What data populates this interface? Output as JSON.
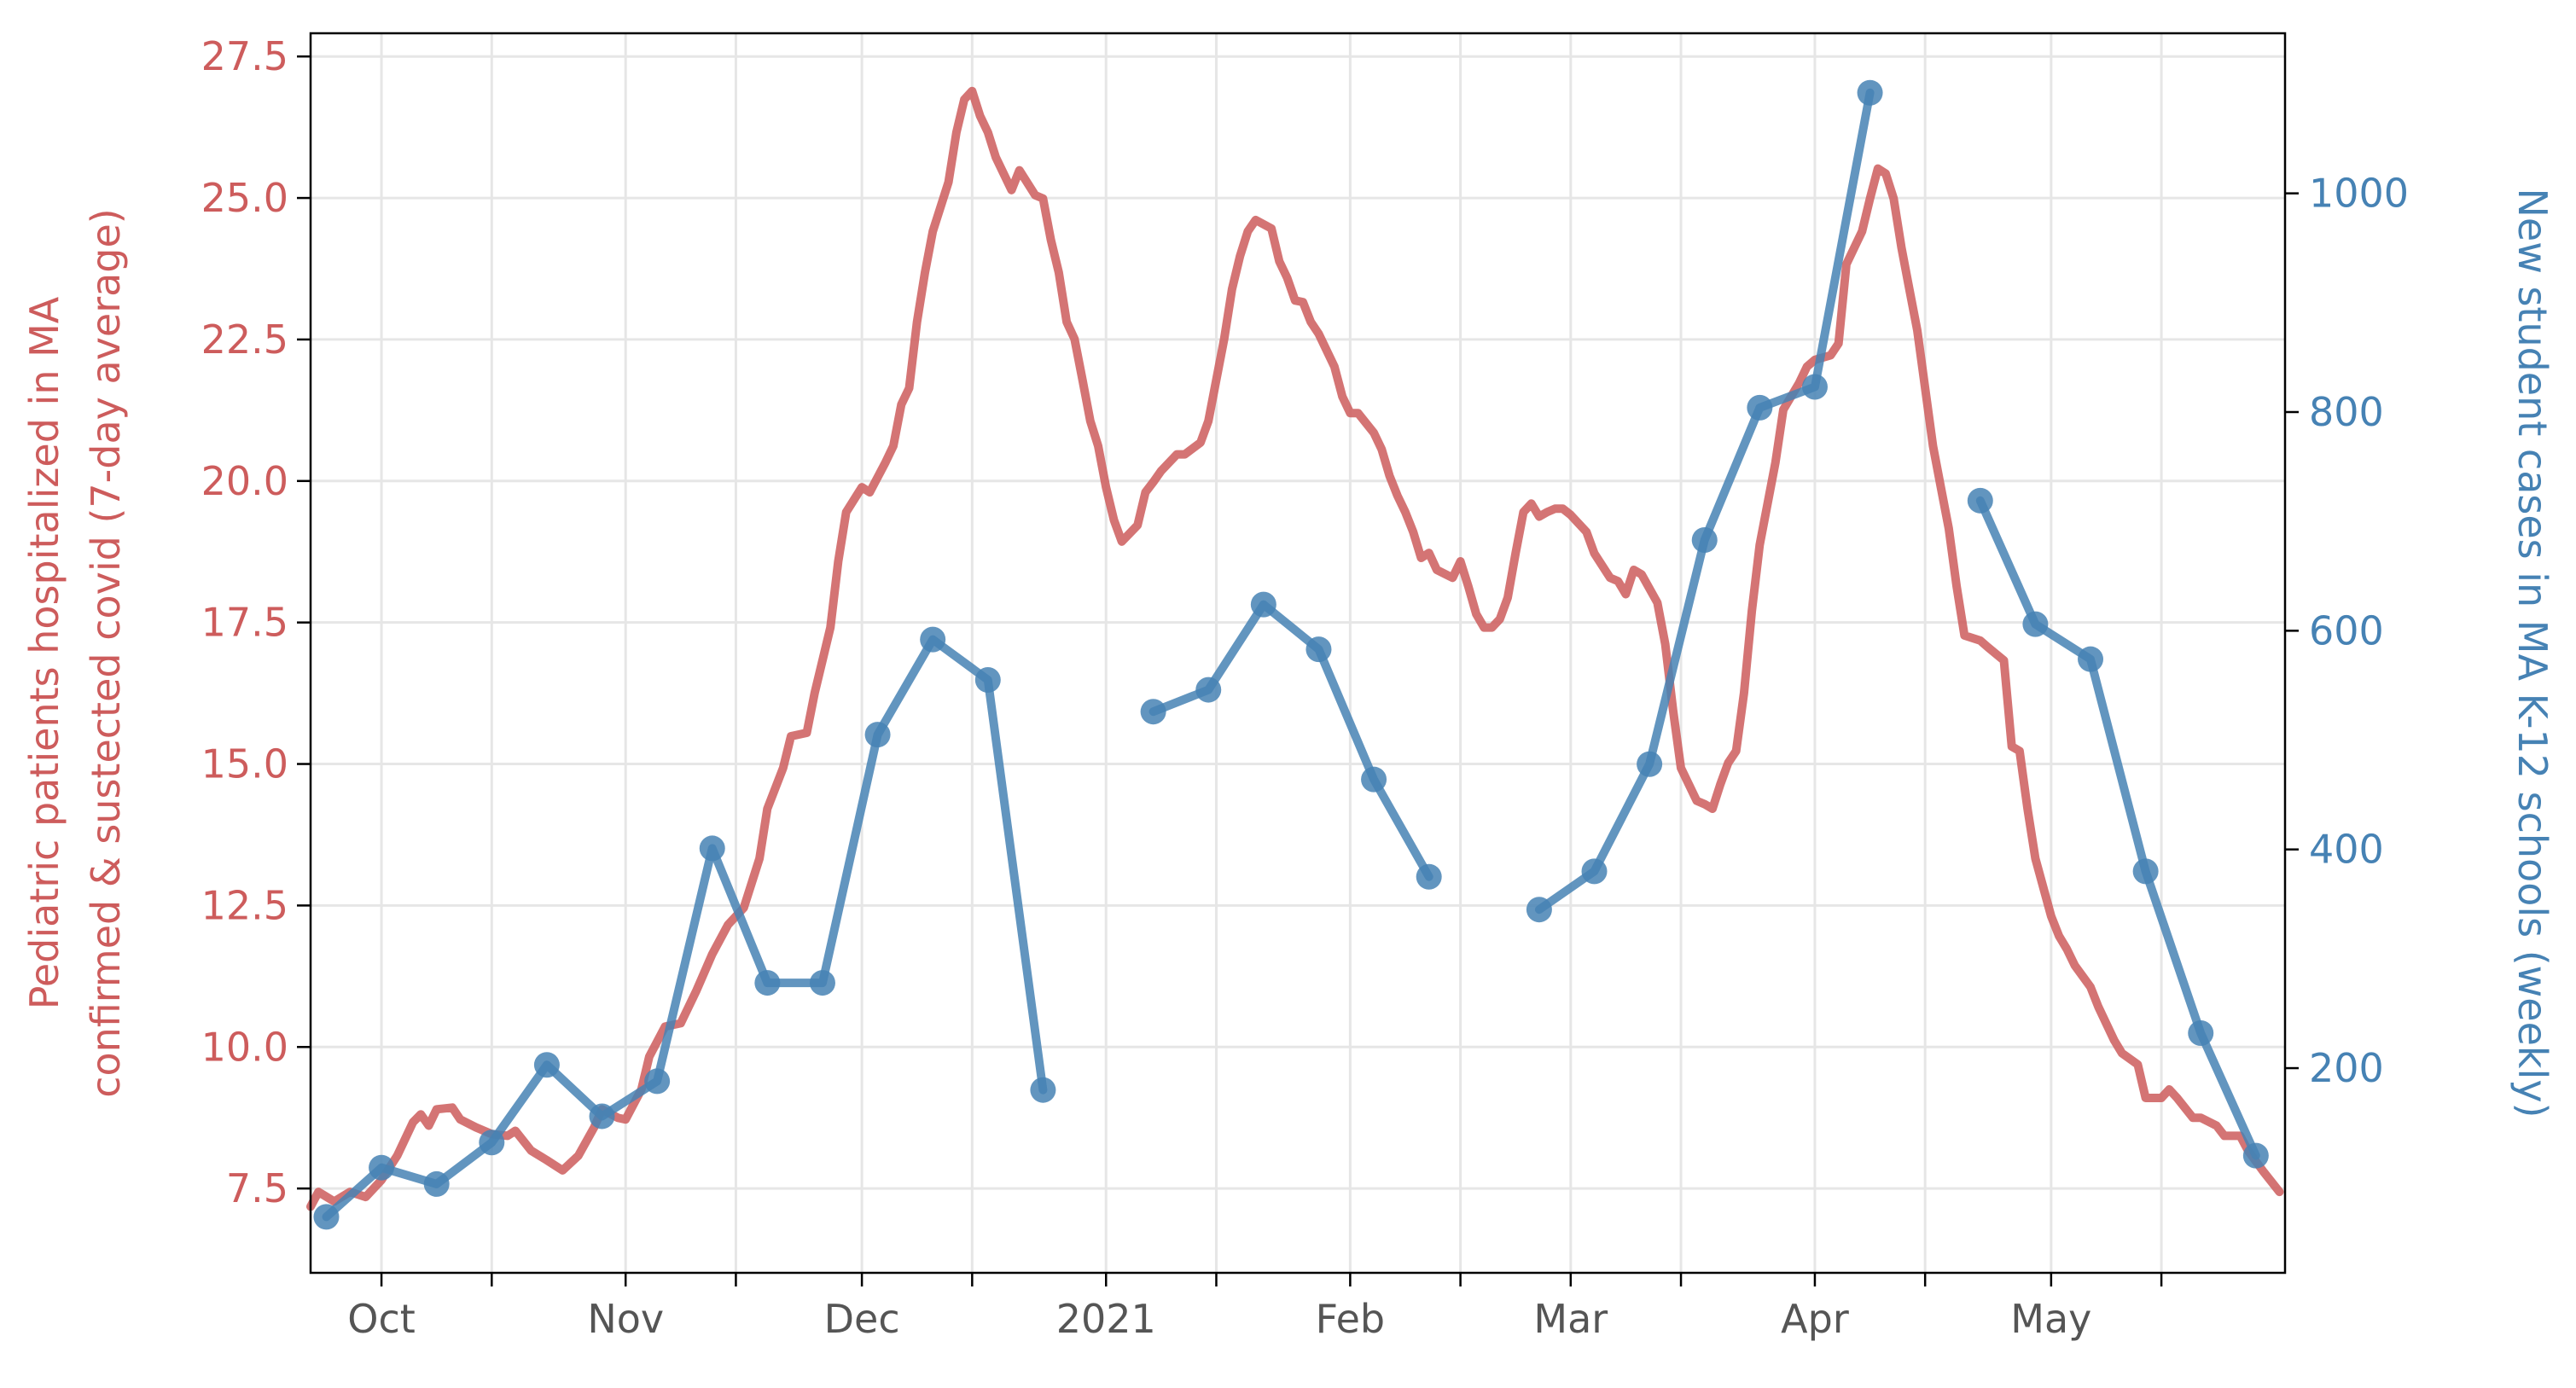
{
  "chart_data": {
    "type": "line",
    "y_label_lines": [
      "Pediatric patients hospitalized in MA",
      "confirmed & sustected covid (7-day average)"
    ],
    "y2_label": "New student cases in MA K-12 schools (weekly)",
    "xlim": [
      -9,
      241.7
    ],
    "xticks": [
      {
        "value": 0,
        "label": "Oct"
      },
      {
        "value": 31,
        "label": "Nov"
      },
      {
        "value": 61,
        "label": "Dec"
      },
      {
        "value": 92,
        "label": "2021"
      },
      {
        "value": 123,
        "label": "Feb"
      },
      {
        "value": 151,
        "label": "Mar"
      },
      {
        "value": 182,
        "label": "Apr"
      },
      {
        "value": 212,
        "label": "May"
      }
    ],
    "xminorticks": [
      14,
      45,
      75,
      106,
      137,
      165,
      196,
      226
    ],
    "ylim": [
      6.01,
      27.91
    ],
    "yticks": [
      7.5,
      {
        "value": 10,
        "label": "10.0"
      },
      12.5,
      {
        "value": 15,
        "label": "15.0"
      },
      17.5,
      {
        "value": 20,
        "label": "20.0"
      },
      22.5,
      {
        "value": 25,
        "label": "25.0"
      },
      27.5
    ],
    "y2lim": [
      12.8,
      1146.4
    ],
    "y2ticks": [
      200,
      400,
      600,
      800,
      1000
    ],
    "grid": true,
    "series": [
      {
        "color": "#cd5c5c",
        "axis": "y",
        "markers": false,
        "x": [
          -9,
          -8,
          -6,
          -4,
          -2,
          0,
          2,
          4,
          5,
          6,
          7,
          9,
          10,
          12,
          14,
          16,
          17,
          19,
          21,
          23,
          25,
          27,
          28,
          30,
          31,
          33,
          34,
          36,
          38,
          40,
          42,
          44,
          46,
          48,
          49,
          51,
          52,
          54,
          55,
          57,
          58,
          59,
          61,
          62,
          64,
          65,
          66,
          67,
          68,
          69,
          70,
          72,
          73,
          74,
          75,
          76,
          77,
          78,
          80,
          81,
          83,
          84,
          85,
          86,
          87,
          88,
          89,
          90,
          91,
          92,
          93,
          94,
          96,
          97,
          98,
          99,
          101,
          102,
          104,
          105,
          106,
          107,
          108,
          109,
          110,
          111,
          113,
          114,
          115,
          116,
          117,
          118,
          119,
          121,
          122,
          123,
          124,
          126,
          127,
          128,
          129,
          130,
          131,
          132,
          133,
          134,
          136,
          137,
          138,
          139,
          140,
          141,
          142,
          143,
          144,
          145,
          146,
          147,
          148,
          149,
          150,
          151,
          153,
          154,
          156,
          157,
          158,
          159,
          160,
          162,
          163,
          164,
          165,
          167,
          168,
          169,
          170,
          171,
          172,
          173,
          174,
          175,
          177,
          178,
          180,
          181,
          182,
          184,
          185,
          186,
          188,
          189,
          190,
          191,
          192,
          193,
          194,
          195,
          197,
          198,
          199,
          200,
          201,
          203,
          204,
          206,
          207,
          208,
          209,
          210,
          212,
          213,
          214,
          215,
          217,
          218,
          220,
          221,
          223,
          224,
          226,
          227,
          228,
          230,
          231,
          233,
          234,
          236,
          237,
          239,
          241
        ],
        "values": [
          7.18,
          7.44,
          7.27,
          7.44,
          7.35,
          7.65,
          8.08,
          8.67,
          8.81,
          8.61,
          8.9,
          8.93,
          8.72,
          8.58,
          8.46,
          8.43,
          8.52,
          8.17,
          8.0,
          7.82,
          8.08,
          8.58,
          8.9,
          8.75,
          8.72,
          9.25,
          9.83,
          10.36,
          10.42,
          11.0,
          11.64,
          12.16,
          12.46,
          13.33,
          14.21,
          14.93,
          15.49,
          15.55,
          16.25,
          17.41,
          18.58,
          19.45,
          19.89,
          19.8,
          20.33,
          20.62,
          21.35,
          21.64,
          22.81,
          23.68,
          24.41,
          25.28,
          26.16,
          26.74,
          26.89,
          26.45,
          26.16,
          25.72,
          25.14,
          25.49,
          25.05,
          24.99,
          24.26,
          23.68,
          22.81,
          22.51,
          21.79,
          21.06,
          20.62,
          19.89,
          19.31,
          18.93,
          19.22,
          19.8,
          19.98,
          20.18,
          20.47,
          20.47,
          20.68,
          21.06,
          21.79,
          22.51,
          23.39,
          23.97,
          24.41,
          24.61,
          24.46,
          23.88,
          23.59,
          23.19,
          23.16,
          22.81,
          22.6,
          22.02,
          21.49,
          21.2,
          21.2,
          20.85,
          20.56,
          20.09,
          19.74,
          19.45,
          19.1,
          18.64,
          18.73,
          18.43,
          18.29,
          18.58,
          18.14,
          17.65,
          17.41,
          17.41,
          17.56,
          17.94,
          18.72,
          19.45,
          19.6,
          19.37,
          19.45,
          19.51,
          19.51,
          19.4,
          19.1,
          18.72,
          18.29,
          18.23,
          18.0,
          18.43,
          18.35,
          17.85,
          17.12,
          15.95,
          14.93,
          14.35,
          14.29,
          14.21,
          14.64,
          15.02,
          15.23,
          16.25,
          17.7,
          18.87,
          20.33,
          21.26,
          21.73,
          22.02,
          22.14,
          22.22,
          22.43,
          23.83,
          24.41,
          24.99,
          25.52,
          25.43,
          24.99,
          24.12,
          23.39,
          22.66,
          20.62,
          19.89,
          19.16,
          18.14,
          17.27,
          17.18,
          17.06,
          16.83,
          15.31,
          15.23,
          14.21,
          13.33,
          12.31,
          11.96,
          11.73,
          11.44,
          11.06,
          10.71,
          10.12,
          9.89,
          9.69,
          9.1,
          9.1,
          9.25,
          9.1,
          8.75,
          8.75,
          8.61,
          8.43,
          8.43,
          8.17,
          7.79,
          7.44
        ]
      },
      {
        "color": "#4682b4",
        "axis": "y2",
        "markers": true,
        "x": [
          -7,
          0,
          7,
          14,
          21,
          28,
          35,
          42,
          49,
          56,
          63,
          70,
          77,
          84,
          91,
          98,
          105,
          112,
          119,
          126,
          133,
          140,
          147,
          154,
          161,
          168,
          175,
          182,
          189,
          196,
          203,
          210,
          217,
          224,
          231,
          238
        ],
        "values": [
          64,
          109,
          94,
          132,
          203,
          156,
          188,
          401,
          278,
          278,
          505,
          592,
          555,
          180,
          null,
          526,
          546,
          624,
          583,
          464,
          375,
          null,
          345,
          380,
          478,
          683,
          804,
          823,
          1092,
          null,
          719,
          606,
          574,
          380,
          232,
          120
        ]
      }
    ]
  }
}
